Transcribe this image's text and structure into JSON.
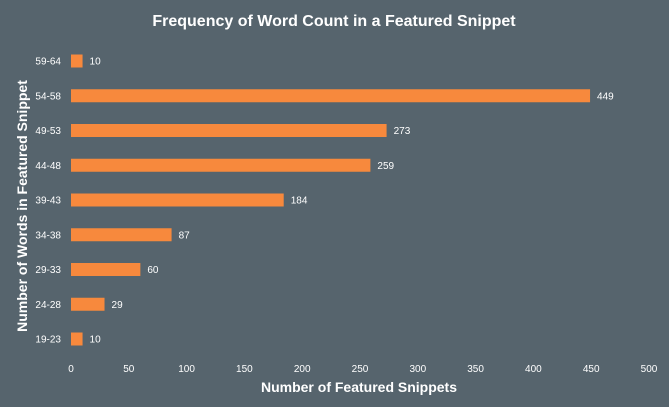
{
  "chart_data": {
    "type": "bar",
    "orientation": "horizontal",
    "title": "Frequency of Word Count in a Featured Snippet",
    "xlabel": "Number of Featured Snippets",
    "ylabel": "Number of Words in Featured Snippet",
    "categories": [
      "59-64",
      "54-58",
      "49-53",
      "44-48",
      "39-43",
      "34-38",
      "29-33",
      "24-28",
      "19-23"
    ],
    "values": [
      10,
      449,
      273,
      259,
      184,
      87,
      60,
      29,
      10
    ],
    "xlim": [
      0,
      500
    ],
    "xticks": [
      0,
      50,
      100,
      150,
      200,
      250,
      300,
      350,
      400,
      450,
      500
    ],
    "grid": false,
    "legend": false,
    "colors": {
      "background": "#56646d",
      "bar": "#f7893d",
      "text": "#ffffff"
    }
  }
}
